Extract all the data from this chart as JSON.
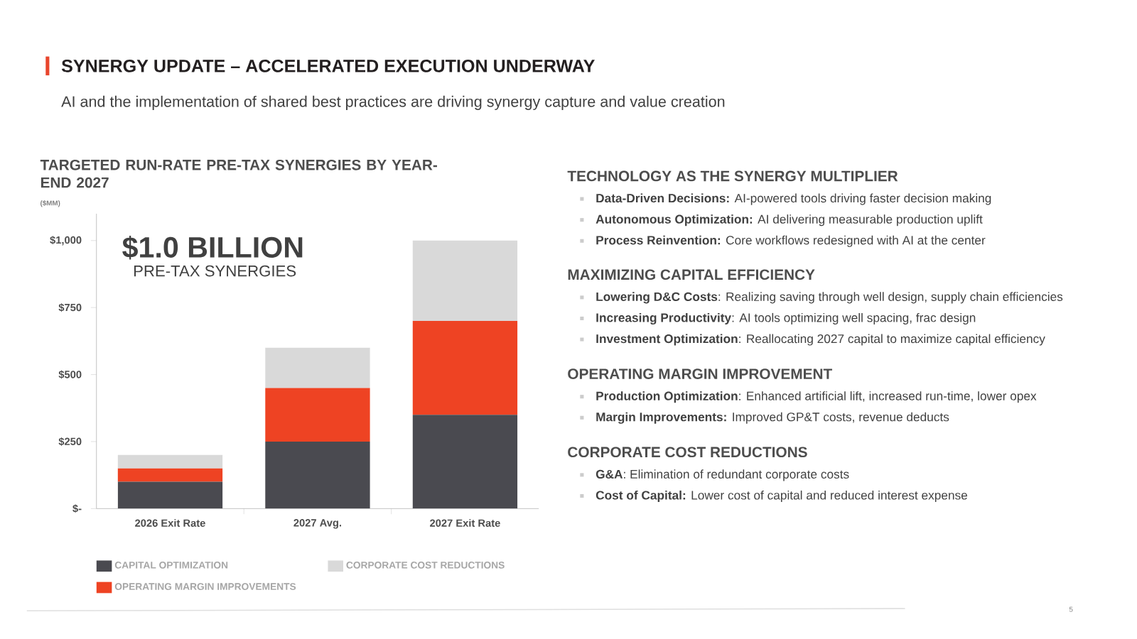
{
  "chart_data": [
    {
      "type": "other",
      "title": "SYNERGY UPDATE – ACCELERATED EXECUTION UNDERWAY",
      "subtitle": "AI and the implementation of shared best practices are driving synergy capture and value creation",
      "annotations": [
        "5"
      ]
    },
    {
      "type": "bar",
      "title": "TARGETED RUN-RATE PRE-TAX SYNERGIES BY YEAR-END 2027",
      "subtitle": "($MM)",
      "categories": [
        "2026 Exit Rate",
        "2027 Avg.",
        "2027 Exit Rate"
      ],
      "stacked": true,
      "legend": "bottom",
      "series": [
        {
          "name": "CAPITAL OPTIMIZATION",
          "color": "#4a4a50",
          "values": [
            100,
            250,
            350
          ]
        },
        {
          "name": "OPERATING MARGIN IMPROVEMENTS",
          "color": "#ee4323",
          "values": [
            50,
            200,
            350
          ]
        },
        {
          "name": "CORPORATE COST REDUCTIONS",
          "color": "#d9d9d9",
          "values": [
            50,
            150,
            300
          ]
        }
      ],
      "ylim": [
        0,
        1100
      ],
      "yticks": [
        {
          "value": 0,
          "label": "$-"
        },
        {
          "value": 250,
          "label": "$250"
        },
        {
          "value": 500,
          "label": "$500"
        },
        {
          "value": 750,
          "label": "$750"
        },
        {
          "value": 1000,
          "label": "$1,000"
        }
      ],
      "annotations": [
        "$1.0 BILLION",
        "PRE-TAX SYNERGIES"
      ]
    },
    {
      "type": "other",
      "title": "TECHNOLOGY AS THE SYNERGY MULTIPLIER",
      "annotations": [
        "**Data-Driven Decisions:** AI-powered tools driving faster decision making",
        "**Autonomous Optimization:** AI delivering measurable production uplift",
        "**Process Reinvention:** Core workflows redesigned with AI at the center"
      ]
    },
    {
      "type": "other",
      "title": "MAXIMIZING CAPITAL EFFICIENCY",
      "annotations": [
        "**Lowering D&C Costs**: Realizing saving through well design, supply chain efficiencies",
        "**Increasing Productivity**: AI tools optimizing well spacing, frac design",
        "**Investment Optimization**: Reallocating 2027 capital to maximize capital efficiency"
      ]
    },
    {
      "type": "other",
      "title": "OPERATING MARGIN IMPROVEMENT",
      "annotations": [
        "**Production Optimization**: Enhanced artificial lift, increased run-time, lower opex",
        "**Margin Improvements:** Improved GP&T costs, revenue deducts"
      ]
    },
    {
      "type": "other",
      "title": "CORPORATE COST REDUCTIONS",
      "annotations": [
        "**G&A**: Elimination of redundant corporate costs",
        "**Cost of Capital:** Lower cost of capital and reduced interest expense"
      ]
    }
  ]
}
